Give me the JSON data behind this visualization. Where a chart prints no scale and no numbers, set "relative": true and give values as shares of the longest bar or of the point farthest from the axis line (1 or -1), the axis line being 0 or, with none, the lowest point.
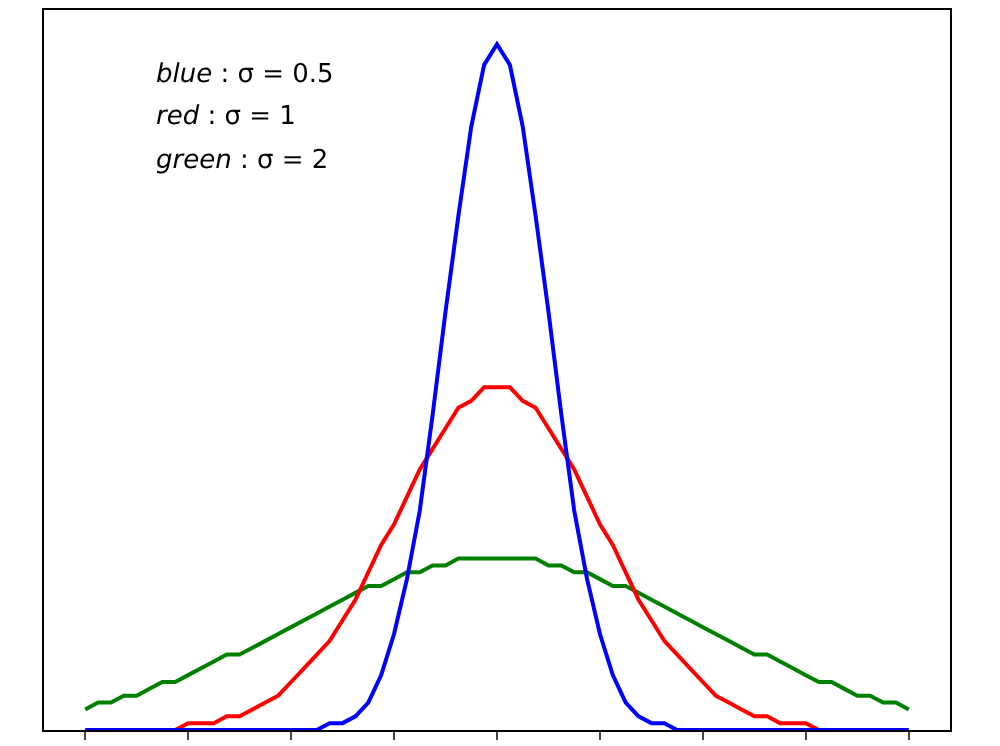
{
  "chart_data": {
    "type": "line",
    "relative": true,
    "annotations": [
      "blue : σ = 0.5",
      "red : σ = 1",
      "green : σ = 2"
    ],
    "categories": [
      null,
      null,
      null,
      null,
      null,
      null,
      null,
      null,
      null,
      null,
      null,
      null,
      null,
      null,
      null,
      null,
      null,
      null,
      null,
      null,
      null,
      null,
      null,
      null,
      null,
      null,
      null,
      null,
      null,
      null,
      null,
      null,
      null,
      null,
      null,
      null,
      null,
      null,
      null,
      null,
      null,
      null,
      null,
      null,
      null,
      null,
      null,
      null,
      null,
      null,
      null,
      null,
      null,
      null,
      null,
      null,
      null,
      null,
      null,
      null,
      null,
      null,
      null,
      null,
      null
    ],
    "series": [
      {
        "color": "#008000",
        "values": [
          0.03,
          0.04,
          0.04,
          0.05,
          0.05,
          0.06,
          0.07,
          0.07,
          0.08,
          0.09,
          0.1,
          0.11,
          0.11,
          0.12,
          0.13,
          0.14,
          0.15,
          0.16,
          0.17,
          0.18,
          0.19,
          0.2,
          0.21,
          0.21,
          0.22,
          0.23,
          0.23,
          0.24,
          0.24,
          0.25,
          0.25,
          0.25,
          0.25,
          0.25,
          0.25,
          0.25,
          0.24,
          0.24,
          0.23,
          0.23,
          0.22,
          0.21,
          0.21,
          0.2,
          0.19,
          0.18,
          0.17,
          0.16,
          0.15,
          0.14,
          0.13,
          0.12,
          0.11,
          0.11,
          0.1,
          0.09,
          0.08,
          0.07,
          0.07,
          0.06,
          0.05,
          0.05,
          0.04,
          0.04,
          0.03
        ]
      },
      {
        "color": "#ff0000",
        "values": [
          null,
          null,
          null,
          null,
          null,
          null,
          0,
          0,
          0.01,
          0.01,
          0.01,
          0.02,
          0.02,
          0.03,
          0.04,
          0.05,
          0.07,
          0.09,
          0.11,
          0.13,
          0.16,
          0.19,
          0.23,
          0.27,
          0.3,
          0.34,
          0.38,
          0.41,
          0.44,
          0.47,
          0.48,
          0.5,
          0.5,
          0.5,
          0.48,
          0.47,
          0.44,
          0.41,
          0.38,
          0.34,
          0.3,
          0.27,
          0.23,
          0.19,
          0.16,
          0.13,
          0.11,
          0.09,
          0.07,
          0.05,
          0.04,
          0.03,
          0.02,
          0.02,
          0.01,
          0.01,
          0.01,
          0,
          0,
          null,
          null,
          null,
          null,
          null,
          null
        ]
      },
      {
        "color": "#0000ff",
        "values": [
          0,
          0,
          0,
          0,
          0,
          0,
          0,
          0,
          0,
          0,
          0,
          0,
          0,
          0,
          0,
          0,
          0,
          0,
          0,
          0.01,
          0.01,
          0.02,
          0.04,
          0.08,
          0.14,
          0.22,
          0.32,
          0.46,
          0.61,
          0.75,
          0.88,
          0.97,
          1,
          0.97,
          0.88,
          0.75,
          0.61,
          0.46,
          0.32,
          0.22,
          0.14,
          0.08,
          0.04,
          0.02,
          0.01,
          0.01,
          0,
          0,
          0,
          0,
          0,
          0,
          0,
          0,
          0,
          0,
          0,
          0,
          0,
          0,
          0,
          0,
          0,
          0,
          0
        ]
      }
    ]
  }
}
